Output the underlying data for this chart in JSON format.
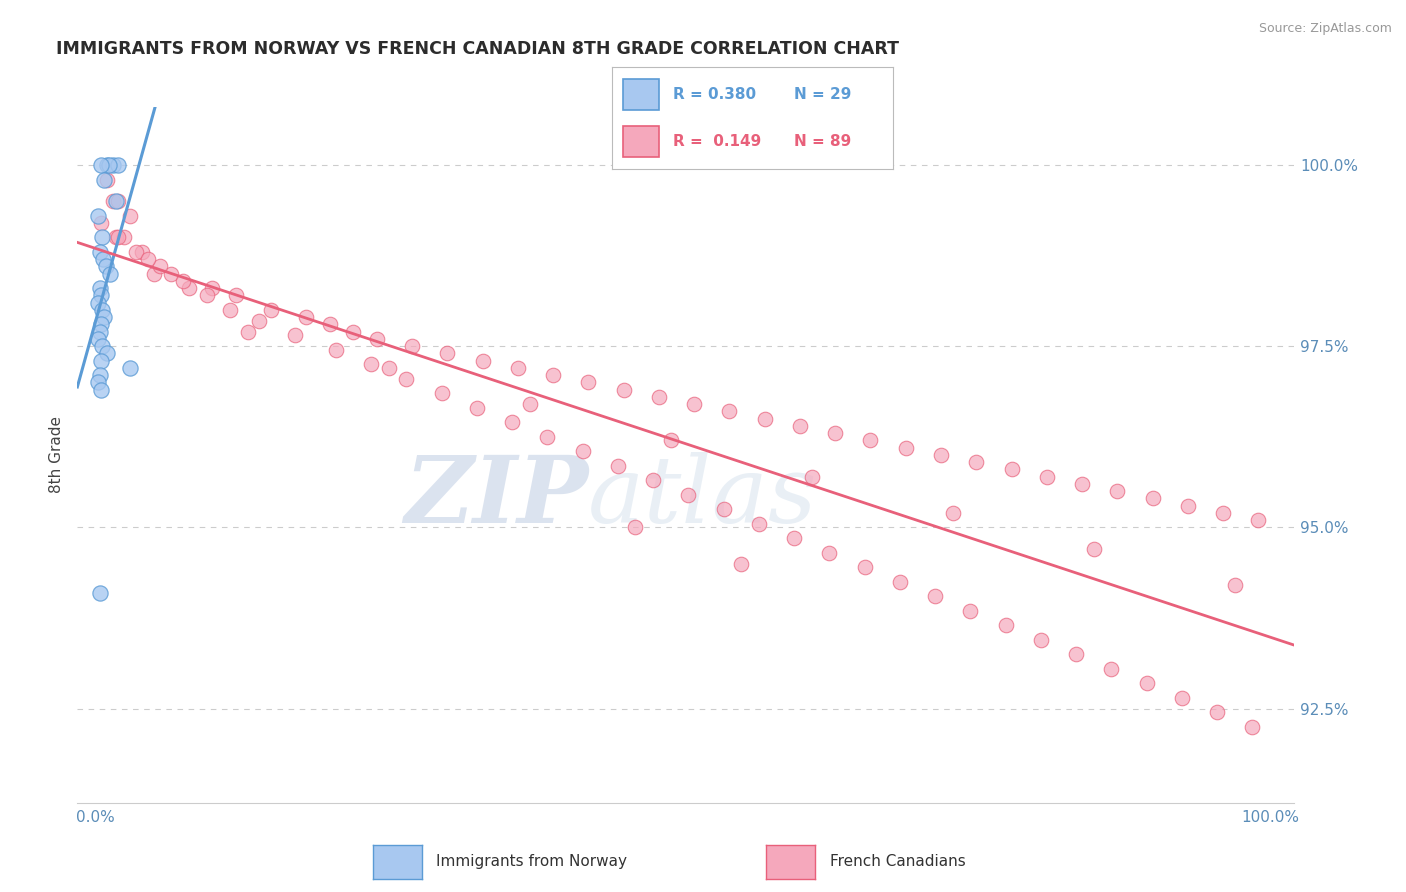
{
  "title": "IMMIGRANTS FROM NORWAY VS FRENCH CANADIAN 8TH GRADE CORRELATION CHART",
  "source": "Source: ZipAtlas.com",
  "ylabel": "8th Grade",
  "ymin": 91.2,
  "ymax": 100.8,
  "xmin": -1.5,
  "xmax": 102.0,
  "yticks": [
    92.5,
    95.0,
    97.5,
    100.0
  ],
  "blue_color": "#A8C8F0",
  "pink_color": "#F5A8BC",
  "blue_line_color": "#5B9BD5",
  "pink_line_color": "#E8607A",
  "legend_R_blue": "R = 0.380",
  "legend_N_blue": "N = 29",
  "legend_R_pink": "R = 0.149",
  "legend_N_pink": "N = 89",
  "blue_scatter_x": [
    1.0,
    1.5,
    2.0,
    1.2,
    0.5,
    0.8,
    1.8,
    0.3,
    0.6,
    0.4,
    0.7,
    0.9,
    1.3,
    0.4,
    0.5,
    0.3,
    0.6,
    0.8,
    0.5,
    0.4,
    0.3,
    0.6,
    1.0,
    0.5,
    3.0,
    0.4,
    0.3,
    0.5,
    0.4
  ],
  "blue_scatter_y": [
    100.0,
    100.0,
    100.0,
    100.0,
    100.0,
    99.8,
    99.5,
    99.3,
    99.0,
    98.8,
    98.7,
    98.6,
    98.5,
    98.3,
    98.2,
    98.1,
    98.0,
    97.9,
    97.8,
    97.7,
    97.6,
    97.5,
    97.4,
    97.3,
    97.2,
    97.1,
    97.0,
    96.9,
    94.1
  ],
  "pink_scatter_x": [
    1.0,
    1.5,
    2.0,
    3.0,
    1.8,
    2.5,
    4.0,
    5.0,
    6.5,
    8.0,
    10.0,
    12.0,
    15.0,
    18.0,
    20.0,
    22.0,
    24.0,
    27.0,
    30.0,
    33.0,
    36.0,
    39.0,
    42.0,
    45.0,
    48.0,
    51.0,
    54.0,
    57.0,
    60.0,
    63.0,
    66.0,
    69.0,
    72.0,
    75.0,
    78.0,
    81.0,
    84.0,
    87.0,
    90.0,
    93.0,
    96.0,
    99.0,
    2.0,
    3.5,
    5.5,
    7.5,
    9.5,
    11.5,
    14.0,
    17.0,
    20.5,
    23.5,
    26.5,
    29.5,
    32.5,
    35.5,
    38.5,
    41.5,
    44.5,
    47.5,
    50.5,
    53.5,
    56.5,
    59.5,
    62.5,
    65.5,
    68.5,
    71.5,
    74.5,
    77.5,
    80.5,
    83.5,
    86.5,
    89.5,
    92.5,
    95.5,
    98.5,
    0.5,
    4.5,
    13.0,
    25.0,
    37.0,
    49.0,
    61.0,
    73.0,
    85.0,
    97.0,
    46.0,
    55.0
  ],
  "pink_scatter_y": [
    99.8,
    99.5,
    99.5,
    99.3,
    99.0,
    99.0,
    98.8,
    98.5,
    98.5,
    98.3,
    98.3,
    98.2,
    98.0,
    97.9,
    97.8,
    97.7,
    97.6,
    97.5,
    97.4,
    97.3,
    97.2,
    97.1,
    97.0,
    96.9,
    96.8,
    96.7,
    96.6,
    96.5,
    96.4,
    96.3,
    96.2,
    96.1,
    96.0,
    95.9,
    95.8,
    95.7,
    95.6,
    95.5,
    95.4,
    95.3,
    95.2,
    95.1,
    99.0,
    98.8,
    98.6,
    98.4,
    98.2,
    98.0,
    97.85,
    97.65,
    97.45,
    97.25,
    97.05,
    96.85,
    96.65,
    96.45,
    96.25,
    96.05,
    95.85,
    95.65,
    95.45,
    95.25,
    95.05,
    94.85,
    94.65,
    94.45,
    94.25,
    94.05,
    93.85,
    93.65,
    93.45,
    93.25,
    93.05,
    92.85,
    92.65,
    92.45,
    92.25,
    99.2,
    98.7,
    97.7,
    97.2,
    96.7,
    96.2,
    95.7,
    95.2,
    94.7,
    94.2,
    95.0,
    94.5
  ],
  "watermark_zip": "ZIP",
  "watermark_atlas": "atlas",
  "grid_color": "#CCCCCC",
  "background_color": "#FFFFFF",
  "title_color": "#2C2C2C",
  "tick_color": "#5B8DB8"
}
